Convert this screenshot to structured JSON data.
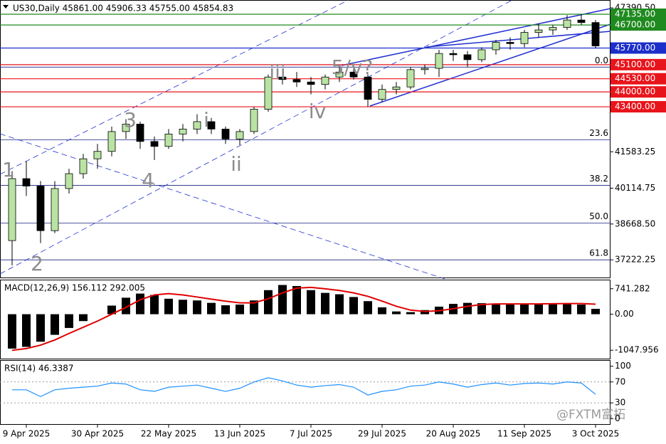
{
  "watermark": "@FXTM富拓",
  "chart_data": [
    {
      "type": "candlestick",
      "title": "US30,Daily  45861.00 45906.33 45755.00 45854.83",
      "categories": [
        null,
        "9 Apr 2025",
        null,
        null,
        null,
        null,
        "30 Apr 2025",
        null,
        null,
        null,
        null,
        "22 May 2025",
        null,
        null,
        null,
        null,
        "13 Jun 2025",
        null,
        null,
        null,
        null,
        "7 Jul 2025",
        null,
        null,
        null,
        null,
        "29 Jul 2025",
        null,
        null,
        null,
        null,
        "20 Aug 2025",
        null,
        null,
        null,
        null,
        "11 Sep 2025",
        null,
        null,
        null,
        null,
        "3 Oct 2025"
      ],
      "open": [
        38000,
        40500,
        40200,
        38400,
        40100,
        40700,
        41300,
        41600,
        42400,
        42700,
        42000,
        41800,
        42300,
        42500,
        42800,
        42500,
        42100,
        42400,
        43300,
        44600,
        44500,
        44400,
        44300,
        44600,
        44800,
        44600,
        43700,
        44100,
        44200,
        44900,
        44950,
        45550,
        45500,
        45300,
        45700,
        46000,
        45950,
        46400,
        46500,
        46600,
        46900,
        46800
      ],
      "high": [
        40800,
        41200,
        40400,
        40400,
        40900,
        41500,
        41900,
        42600,
        42900,
        42800,
        42200,
        42500,
        42700,
        43100,
        42950,
        42600,
        42500,
        43400,
        44700,
        44950,
        44800,
        44600,
        44700,
        45000,
        45100,
        44700,
        44300,
        44400,
        45000,
        45100,
        45700,
        45700,
        45650,
        45800,
        46100,
        46200,
        46500,
        46750,
        46700,
        47100,
        47135,
        46900
      ],
      "low": [
        37000,
        39800,
        37900,
        38300,
        39900,
        40500,
        40900,
        41400,
        42100,
        41700,
        41250,
        41700,
        42000,
        42300,
        42300,
        41900,
        41850,
        42300,
        43200,
        44300,
        44200,
        43900,
        44100,
        44400,
        44500,
        43400,
        43600,
        43900,
        44100,
        44700,
        44600,
        45250,
        45000,
        45200,
        45500,
        45700,
        45800,
        46200,
        46300,
        46500,
        46700,
        45755
      ],
      "close": [
        40500,
        40200,
        38400,
        40100,
        40700,
        41300,
        41600,
        42400,
        42700,
        42000,
        41800,
        42300,
        42500,
        42800,
        42500,
        42100,
        42400,
        43300,
        44600,
        44500,
        44400,
        44300,
        44600,
        44800,
        44600,
        43700,
        44100,
        44200,
        44900,
        44950,
        45550,
        45500,
        45300,
        45700,
        46000,
        45950,
        46400,
        46500,
        46600,
        46900,
        46800,
        45854.83
      ],
      "up_color": "#b9e3a3",
      "down_color": "#000000",
      "ylim": [
        36510,
        47680
      ],
      "yticks": [
        {
          "value": 47390.5,
          "label": "47390.50"
        },
        41583.25,
        40114.75,
        {
          "value": 38668.5,
          "label": "38668.50"
        },
        37222.25
      ],
      "levels": [
        {
          "value": 47135,
          "label": "47135.00",
          "color": "#1f8a1f"
        },
        {
          "value": 46700,
          "label": "46700.00",
          "color": "#1f8a1f"
        },
        {
          "value": 45770,
          "label": "45770.00",
          "color": "#1c2fc9"
        },
        {
          "value": 45100,
          "label": "45100.00",
          "color": "#e8141b"
        },
        {
          "value": 44530,
          "label": "44530.00",
          "color": "#e8141b"
        },
        {
          "value": 44000,
          "label": "44000.00",
          "color": "#e8141b"
        },
        {
          "value": 43400,
          "label": "43400.00",
          "color": "#e8141b"
        }
      ],
      "fib_levels": [
        {
          "value": 45000,
          "label": "0.0"
        },
        {
          "value": 42063,
          "label": "23.6"
        },
        {
          "value": 40230,
          "label": "38.2"
        },
        {
          "value": 38710,
          "label": "50.0"
        },
        {
          "value": 37222,
          "label": "61.8"
        }
      ],
      "annotations": [
        "1",
        "2",
        "3",
        "4",
        "i",
        "ii",
        "iii",
        "iv",
        "5/v?"
      ]
    },
    {
      "type": "macd",
      "title": "MACD(12,26,9) 156.112 292.005",
      "histogram": [
        -1000,
        -950,
        -800,
        -600,
        -400,
        -200,
        0,
        250,
        480,
        600,
        560,
        450,
        420,
        400,
        330,
        260,
        280,
        400,
        700,
        850,
        820,
        700,
        620,
        580,
        500,
        380,
        200,
        80,
        60,
        120,
        220,
        300,
        330,
        320,
        300,
        290,
        300,
        310,
        320,
        300,
        280,
        156.112
      ],
      "signal": [
        -1050,
        -1000,
        -900,
        -750,
        -560,
        -380,
        -200,
        0,
        200,
        420,
        560,
        600,
        560,
        500,
        440,
        380,
        330,
        330,
        450,
        620,
        760,
        780,
        740,
        690,
        620,
        520,
        380,
        230,
        120,
        80,
        100,
        160,
        230,
        280,
        300,
        300,
        300,
        300,
        305,
        310,
        310,
        292.005
      ],
      "histogram_color": "#000000",
      "signal_color": "#e00000",
      "ylim": [
        -1292,
        985
      ],
      "yticks": [
        741.282,
        {
          "value": 0,
          "label": "0.00"
        },
        -1047.956
      ]
    },
    {
      "type": "line",
      "title": "RSI(14) 46.3387",
      "values": [
        55,
        55,
        42,
        55,
        58,
        60,
        62,
        68,
        66,
        55,
        52,
        60,
        62,
        64,
        58,
        52,
        58,
        70,
        78,
        72,
        64,
        60,
        63,
        65,
        60,
        45,
        52,
        55,
        62,
        64,
        70,
        66,
        60,
        65,
        68,
        64,
        67,
        68,
        66,
        70,
        68,
        46.3387
      ],
      "color": "#1e90ff",
      "ylim": [
        -10.5,
        110.5
      ],
      "yticks": [
        100,
        70,
        30,
        0
      ],
      "dashed_levels": [
        70,
        30
      ]
    }
  ]
}
